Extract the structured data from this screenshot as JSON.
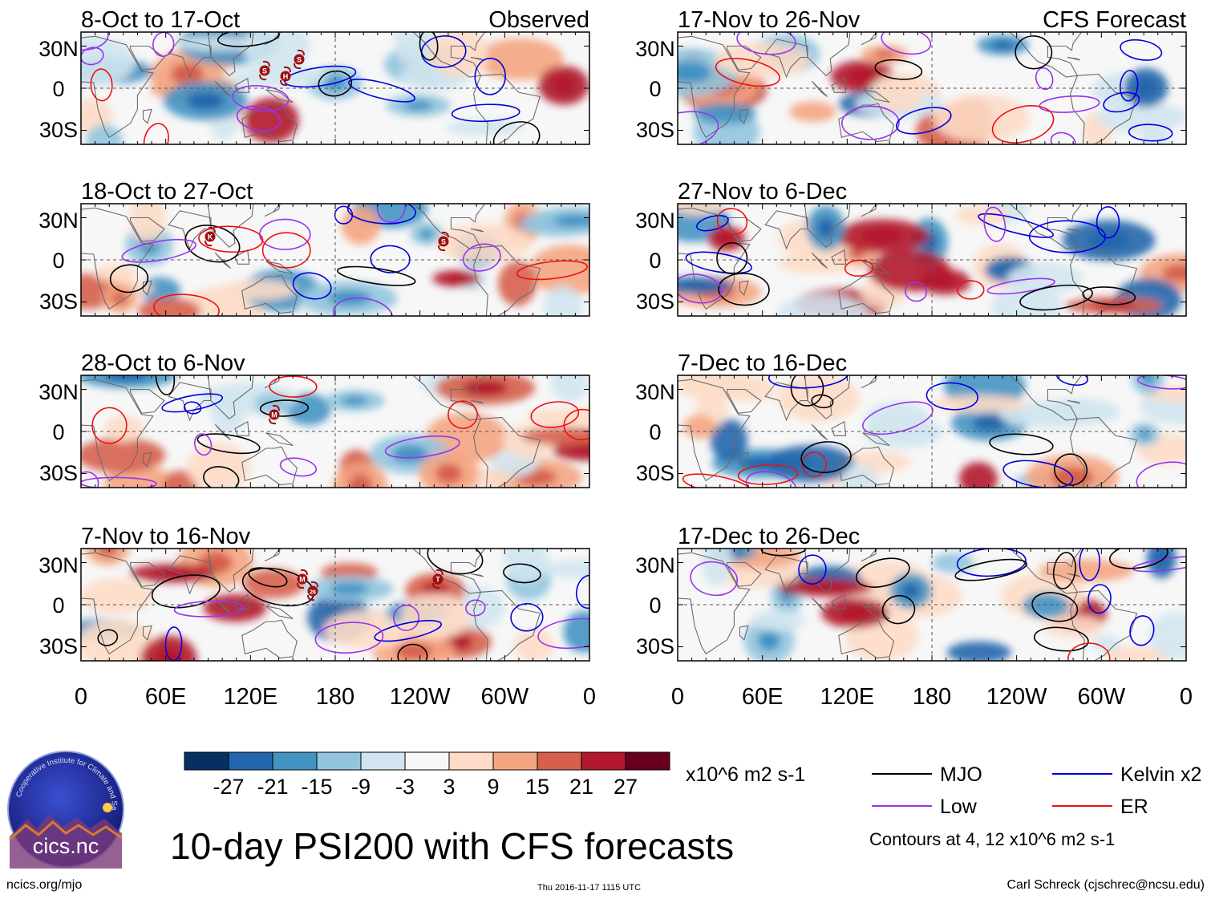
{
  "panels": [
    {
      "date": "8-Oct to 17-Oct",
      "label": "Observed",
      "column": "left"
    },
    {
      "date": "18-Oct to 27-Oct",
      "label": "",
      "column": "left"
    },
    {
      "date": "28-Oct to 6-Nov",
      "label": "",
      "column": "left"
    },
    {
      "date": "7-Nov to 16-Nov",
      "label": "",
      "column": "left"
    },
    {
      "date": "17-Nov to 26-Nov",
      "label": "CFS Forecast",
      "column": "right"
    },
    {
      "date": "27-Nov to 6-Dec",
      "label": "",
      "column": "right"
    },
    {
      "date": "7-Dec to 16-Dec",
      "label": "",
      "column": "right"
    },
    {
      "date": "17-Dec to 26-Dec",
      "label": "",
      "column": "right"
    }
  ],
  "axes": {
    "lat_labels": [
      "30N",
      "0",
      "30S"
    ],
    "lon_labels": [
      "0",
      "60E",
      "120E",
      "180",
      "120W",
      "60W",
      "0"
    ]
  },
  "colorbar": {
    "ticks": [
      "-27",
      "-21",
      "-15",
      "-9",
      "-3",
      "3",
      "9",
      "15",
      "21",
      "27"
    ],
    "colors": [
      "#053061",
      "#2166ac",
      "#4393c3",
      "#92c5de",
      "#d1e5f0",
      "#f7f7f7",
      "#fddbc7",
      "#f4a582",
      "#d6604d",
      "#b2182b",
      "#67001f"
    ],
    "units": "x10^6 m2 s-1"
  },
  "legend": {
    "items": [
      {
        "label": "MJO",
        "color": "#000000"
      },
      {
        "label": "Kelvin x2",
        "color": "#0000dd"
      },
      {
        "label": "Low",
        "color": "#9933ee"
      },
      {
        "label": "ER",
        "color": "#ee1111"
      }
    ],
    "note": "Contours at 4, 12 x10^6 m2 s-1"
  },
  "storms": [
    {
      "panel": 0,
      "label": "S"
    },
    {
      "panel": 0,
      "label": "H"
    },
    {
      "panel": 0,
      "label": "S"
    },
    {
      "panel": 1,
      "label": "K"
    },
    {
      "panel": 1,
      "label": "S"
    },
    {
      "panel": 2,
      "label": "M"
    },
    {
      "panel": 3,
      "label": "M"
    },
    {
      "panel": 3,
      "label": "26"
    },
    {
      "panel": 3,
      "label": "T"
    }
  ],
  "footer": {
    "title": "10-day PSI200 with CFS forecasts",
    "url": "ncics.org/mjo",
    "timestamp": "Thu 2016-11-17 1115 UTC",
    "author": "Carl Schreck (cjschrec@ncsu.edu)",
    "logo_text": "cics.nc",
    "logo_ring": "Cooperative Institute for Climate and Satellites"
  }
}
